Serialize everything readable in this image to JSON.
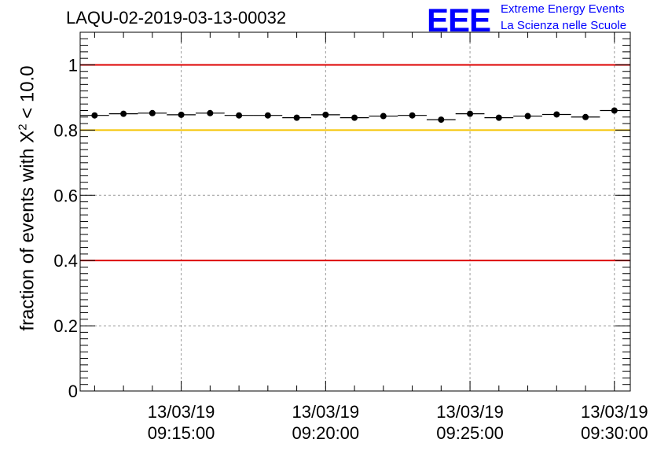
{
  "title": "LAQU-02-2019-03-13-00032",
  "logo": {
    "mark": "EEE",
    "line1": "Extreme Energy Events",
    "line2": "La Scienza nelle Scuole",
    "color": "#0000ff"
  },
  "chart_data": {
    "type": "scatter",
    "title": "LAQU-02-2019-03-13-00032",
    "ylabel": {
      "pre": "fraction of events with ",
      "sym": "X",
      "sup": "2",
      "post": " < 10.0"
    },
    "xlabel": "",
    "ylim": [
      0,
      1.1
    ],
    "x_range_minutes": [
      11.5,
      30.55
    ],
    "grid": true,
    "xticks": [
      {
        "minute": 15,
        "line1": "13/03/19",
        "line2": "09:15:00"
      },
      {
        "minute": 20,
        "line1": "13/03/19",
        "line2": "09:20:00"
      },
      {
        "minute": 25,
        "line1": "13/03/19",
        "line2": "09:25:00"
      },
      {
        "minute": 30,
        "line1": "13/03/19",
        "line2": "09:30:00"
      }
    ],
    "yticks": [
      0,
      0.2,
      0.4,
      0.6,
      0.8,
      1
    ],
    "ytick_labels": [
      "0",
      "0.2",
      "0.4",
      "0.6",
      "0.8",
      "1"
    ],
    "bin_width_minutes": 1,
    "reference_lines": [
      {
        "y": 1.0,
        "color": "#dd0000"
      },
      {
        "y": 0.8,
        "color": "#f5c400"
      },
      {
        "y": 0.4,
        "color": "#dd0000"
      }
    ],
    "series": [
      {
        "name": "fraction",
        "x_minutes": [
          12,
          13,
          14,
          15,
          16,
          17,
          18,
          19,
          20,
          21,
          22,
          23,
          24,
          25,
          26,
          27,
          28,
          29,
          30
        ],
        "values": [
          0.845,
          0.85,
          0.852,
          0.847,
          0.852,
          0.845,
          0.845,
          0.838,
          0.847,
          0.838,
          0.843,
          0.845,
          0.832,
          0.85,
          0.838,
          0.843,
          0.848,
          0.84,
          0.86
        ],
        "errors": [
          0.003,
          0.003,
          0.003,
          0.003,
          0.003,
          0.003,
          0.003,
          0.003,
          0.003,
          0.003,
          0.003,
          0.003,
          0.003,
          0.003,
          0.003,
          0.003,
          0.003,
          0.003,
          0.003
        ]
      }
    ]
  }
}
